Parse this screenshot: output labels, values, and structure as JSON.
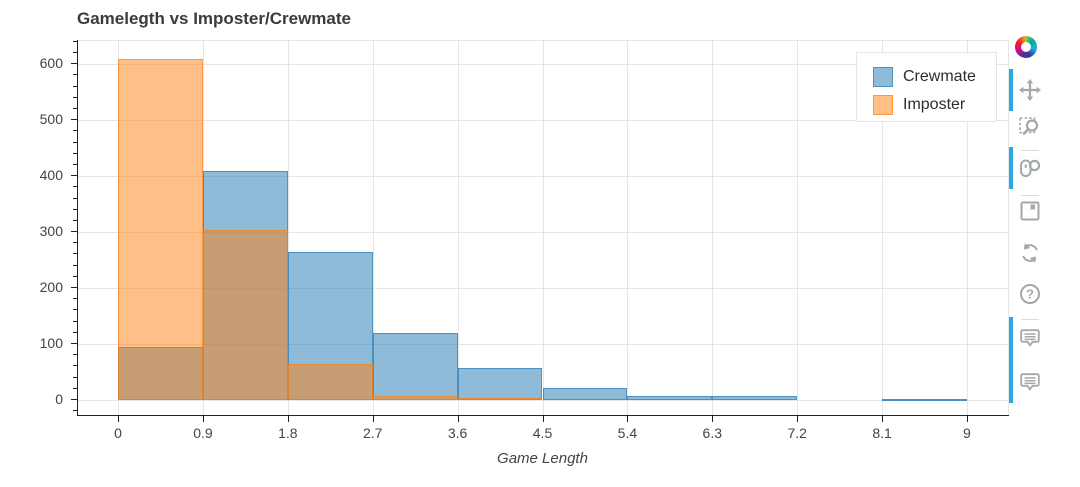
{
  "chart_data": {
    "type": "histogram",
    "title": "Gamelegth vs Imposter/Crewmate",
    "xlabel": "Game Length",
    "ylabel": "",
    "grid": true,
    "bin_edges": [
      0,
      0.9,
      1.8,
      2.7,
      3.6,
      4.5,
      5.4,
      6.3,
      7.2,
      8.1,
      9
    ],
    "series": [
      {
        "name": "Crewmate",
        "color": "#1f77b4",
        "fill_alpha": 0.5,
        "values": [
          95,
          410,
          265,
          120,
          57,
          22,
          7,
          8,
          0,
          2
        ]
      },
      {
        "name": "Imposter",
        "color": "#ff7f0e",
        "fill_alpha": 0.5,
        "values": [
          610,
          303,
          65,
          8,
          4,
          0,
          0,
          0,
          0,
          0
        ]
      }
    ],
    "x_ticks": [
      0,
      0.9,
      1.8,
      2.7,
      3.6,
      4.5,
      5.4,
      6.3,
      7.2,
      8.1,
      9
    ],
    "x_tick_labels": [
      "0",
      "0.9",
      "1.8",
      "2.7",
      "3.6",
      "4.5",
      "5.4",
      "6.3",
      "7.2",
      "8.1",
      "9"
    ],
    "y_ticks": [
      0,
      100,
      200,
      300,
      400,
      500,
      600
    ],
    "y_tick_labels": [
      "0",
      "100",
      "200",
      "300",
      "400",
      "500",
      "600"
    ],
    "y_minor_step": 20,
    "x_range": [
      -0.435,
      9.435
    ],
    "y_range": [
      -28.6,
      641.4
    ],
    "legend": {
      "position": "top_right",
      "items": [
        {
          "label": "Crewmate",
          "color": "#1f77b4"
        },
        {
          "label": "Imposter",
          "color": "#ff7f0e"
        }
      ]
    }
  },
  "toolbar": {
    "accent_color": "#26aae1",
    "items": [
      {
        "name": "bokeh-logo",
        "icon": "logo",
        "active": false
      },
      {
        "name": "pan-tool",
        "icon": "pan",
        "active": true
      },
      {
        "name": "box-zoom-tool",
        "icon": "box-zoom",
        "active": false
      },
      {
        "name": "wheel-zoom-tool",
        "icon": "wheel-zoom",
        "active": true
      },
      {
        "name": "save-tool",
        "icon": "save",
        "active": false
      },
      {
        "name": "reset-tool",
        "icon": "reset",
        "active": false
      },
      {
        "name": "help-tool",
        "icon": "help",
        "active": false
      },
      {
        "name": "hover-tool-1",
        "icon": "hover",
        "active": true
      },
      {
        "name": "hover-tool-2",
        "icon": "hover",
        "active": true
      }
    ]
  }
}
